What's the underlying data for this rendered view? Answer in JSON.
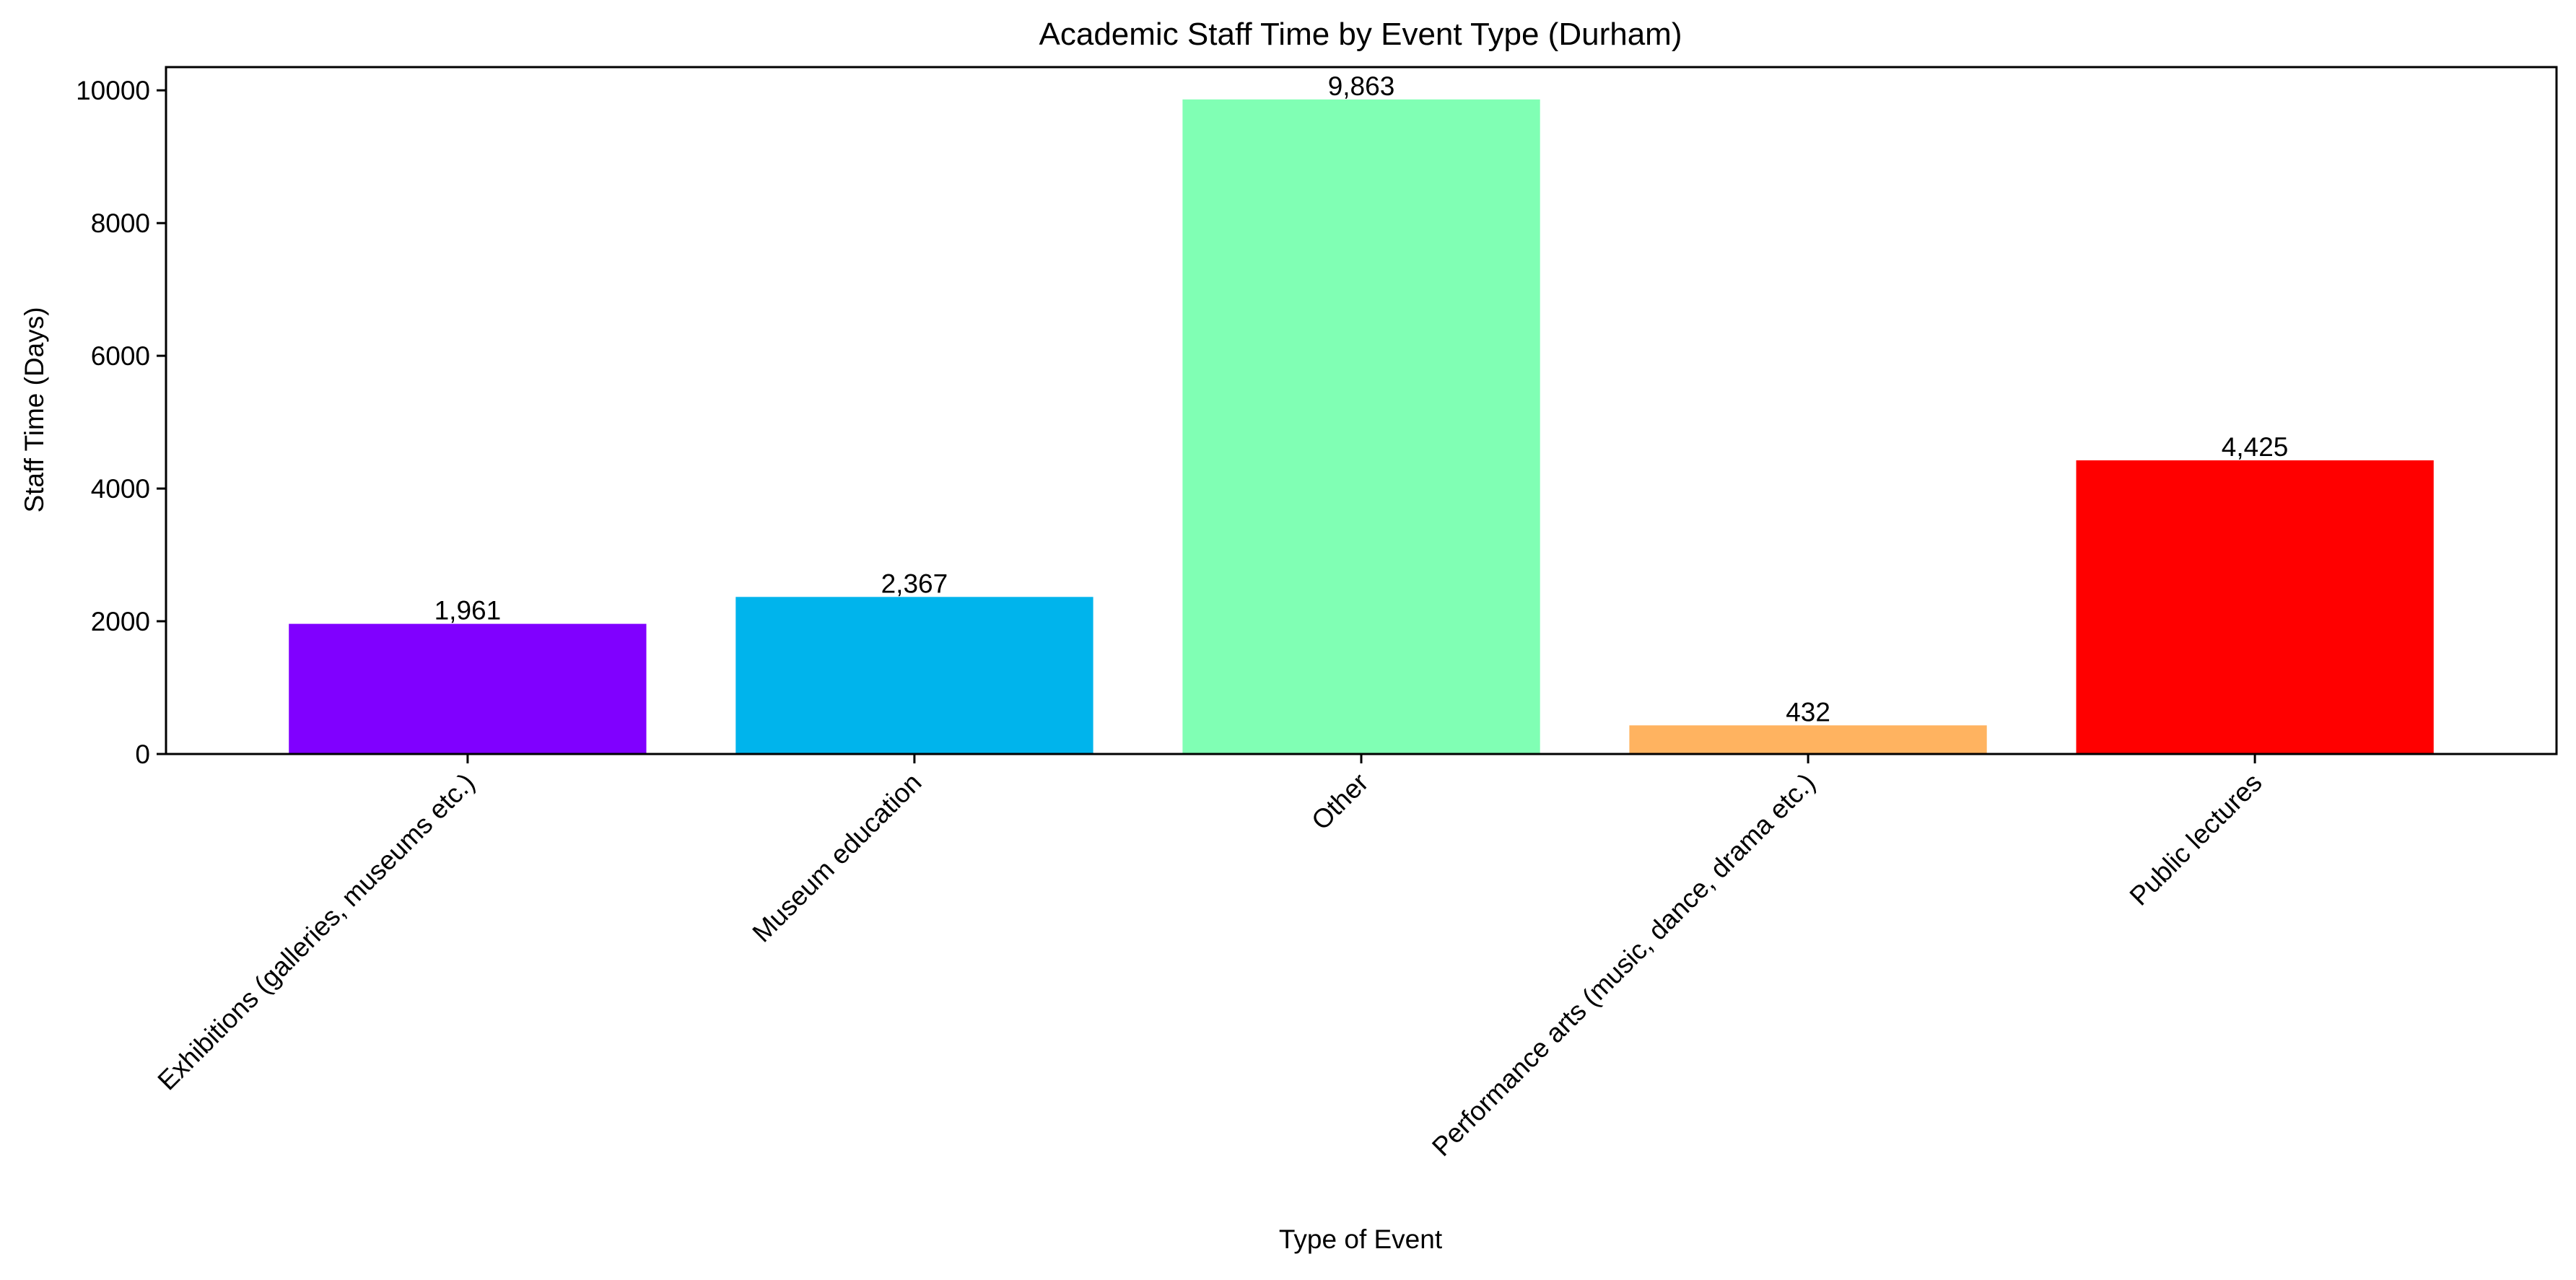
{
  "chart_data": {
    "type": "bar",
    "title": "Academic Staff Time by Event Type (Durham)",
    "xlabel": "Type of Event",
    "ylabel": "Staff Time (Days)",
    "ylim": [
      0,
      10350
    ],
    "yticks": [
      0,
      2000,
      4000,
      6000,
      8000,
      10000
    ],
    "categories": [
      "Exhibitions (galleries, museums etc.)",
      "Museum education",
      "Other",
      "Performance arts (music, dance, drama etc.)",
      "Public lectures"
    ],
    "values": [
      1961,
      2367,
      9863,
      432,
      4425
    ],
    "value_labels": [
      "1,961",
      "2,367",
      "9,863",
      "432",
      "4,425"
    ],
    "colors": [
      "#8000ff",
      "#00b4ec",
      "#80ffb4",
      "#ffb360",
      "#ff0000"
    ],
    "grid": false,
    "legend": "none"
  }
}
